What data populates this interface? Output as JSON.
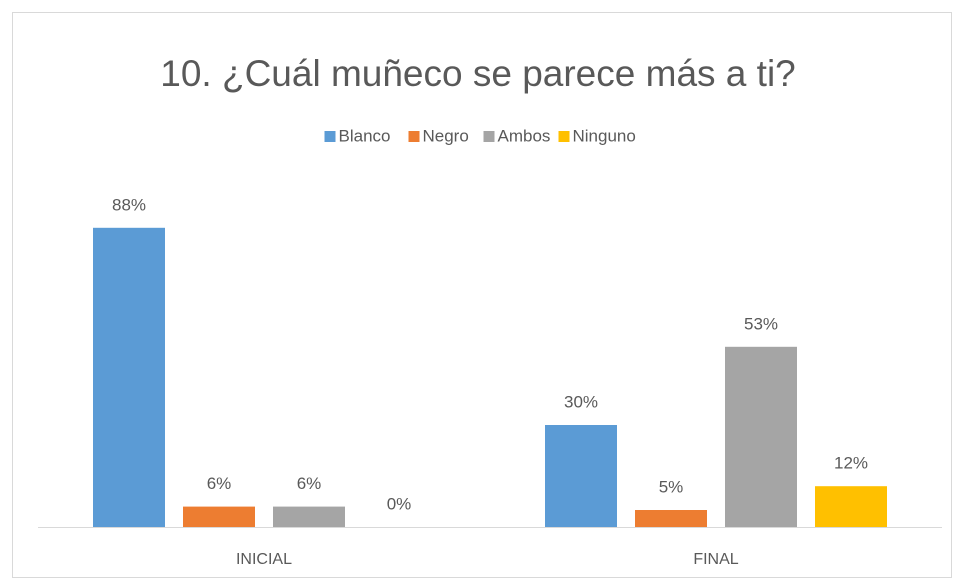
{
  "chart_data": {
    "type": "bar",
    "title": "10. ¿Cuál muñeco se parece más a ti?",
    "categories": [
      "INICIAL",
      "FINAL"
    ],
    "legend": "top",
    "series": [
      {
        "name": "Blanco",
        "color": "#5b9bd5",
        "values": [
          88,
          30
        ],
        "value_labels": [
          "88%",
          "30%"
        ]
      },
      {
        "name": "Negro",
        "color": "#ed7d31",
        "values": [
          6,
          5
        ],
        "value_labels": [
          "6%",
          "5%"
        ]
      },
      {
        "name": "Ambos",
        "color": "#a5a5a5",
        "values": [
          6,
          53
        ],
        "value_labels": [
          "6%",
          "53%"
        ]
      },
      {
        "name": "Ninguno",
        "color": "#ffc000",
        "values": [
          0,
          12
        ],
        "value_labels": [
          "0%",
          "12%"
        ]
      }
    ]
  }
}
